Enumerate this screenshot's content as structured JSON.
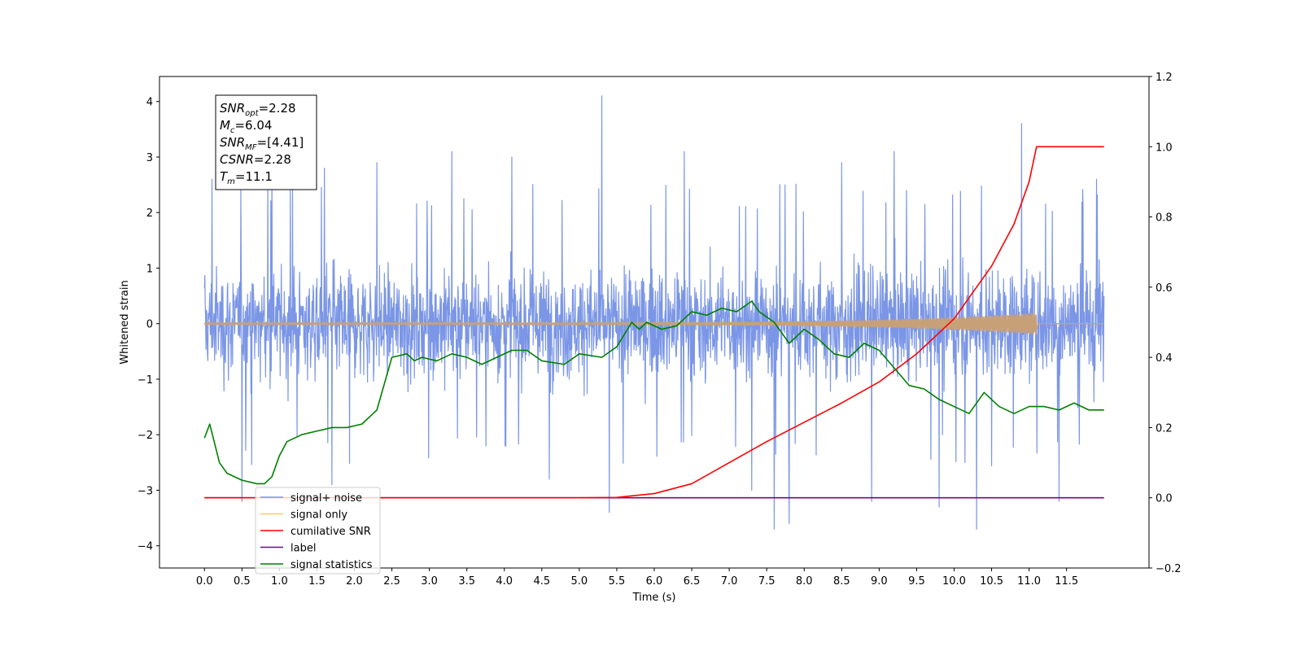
{
  "chart_data": {
    "type": "line",
    "xlabel": "Time (s)",
    "ylabel": "Whitened strain",
    "xlim": [
      -0.6,
      12.6
    ],
    "ylim": [
      -4.4,
      4.45
    ],
    "y2lim": [
      -0.2,
      1.2
    ],
    "x_ticks": [
      0.0,
      0.5,
      1.0,
      1.5,
      2.0,
      2.5,
      3.0,
      3.5,
      4.0,
      4.5,
      5.0,
      5.5,
      6.0,
      6.5,
      7.0,
      7.5,
      8.0,
      8.5,
      9.0,
      9.5,
      10.0,
      10.5,
      11.0,
      11.5
    ],
    "x_tick_labels": [
      "0.0",
      "0.5",
      "1.0",
      "1.5",
      "2.0",
      "2.5",
      "3.0",
      "3.5",
      "4.0",
      "4.5",
      "5.0",
      "5.5",
      "6.0",
      "6.5",
      "7.0",
      "7.5",
      "8.0",
      "8.5",
      "9.0",
      "9.5",
      "10.0",
      "10.5",
      "11.0",
      "11.5"
    ],
    "y_ticks": [
      -4,
      -3,
      -2,
      -1,
      0,
      1,
      2,
      3,
      4
    ],
    "y_tick_labels": [
      "−4",
      "−3",
      "−2",
      "−1",
      "0",
      "1",
      "2",
      "3",
      "4"
    ],
    "y2_ticks": [
      -0.2,
      0.0,
      0.2,
      0.4,
      0.6,
      0.8,
      1.0,
      1.2
    ],
    "y2_tick_labels": [
      "−0.2",
      "0.0",
      "0.2",
      "0.4",
      "0.6",
      "0.8",
      "1.0",
      "1.2"
    ],
    "grid": false,
    "legend_position": "lower-left",
    "legend": [
      {
        "label": "signal+ noise",
        "color": "#7b96e6"
      },
      {
        "label": "signal only",
        "color": "#ffc966"
      },
      {
        "label": "cumilative SNR",
        "color": "#ff0000"
      },
      {
        "label": "label",
        "color": "#800080"
      },
      {
        "label": "signal statistics",
        "color": "#008000"
      }
    ],
    "annotation": {
      "lines": [
        {
          "var": "SNR",
          "sub": "opt",
          "value": "=2.28"
        },
        {
          "var": "M",
          "sub": "c",
          "value": "=6.04"
        },
        {
          "var": "SNR",
          "sub": "MF",
          "value": "=[4.41]"
        },
        {
          "var": "CSNR",
          "sub": "",
          "value": "=2.28"
        },
        {
          "var": "T",
          "sub": "m",
          "value": "=11.1"
        }
      ]
    },
    "series": [
      {
        "name": "signal+ noise",
        "axis": "left",
        "color": "#7b96e6",
        "x_range": [
          0.0,
          12.0
        ],
        "envelope_typical": [
          -1.6,
          1.6
        ],
        "peaks": [
          {
            "x": 0.1,
            "y": 2.6
          },
          {
            "x": 0.5,
            "y": -3.2
          },
          {
            "x": 0.9,
            "y": 2.8
          },
          {
            "x": 1.6,
            "y": 2.8
          },
          {
            "x": 1.7,
            "y": -2.9
          },
          {
            "x": 2.3,
            "y": 2.9
          },
          {
            "x": 3.3,
            "y": 3.1
          },
          {
            "x": 4.1,
            "y": 3.0
          },
          {
            "x": 4.6,
            "y": -2.8
          },
          {
            "x": 5.3,
            "y": 4.1
          },
          {
            "x": 5.4,
            "y": -3.4
          },
          {
            "x": 6.4,
            "y": 3.1
          },
          {
            "x": 7.3,
            "y": -3.0
          },
          {
            "x": 7.6,
            "y": -3.7
          },
          {
            "x": 7.8,
            "y": -3.6
          },
          {
            "x": 8.5,
            "y": 2.9
          },
          {
            "x": 8.9,
            "y": -3.2
          },
          {
            "x": 9.2,
            "y": 3.1
          },
          {
            "x": 9.8,
            "y": -3.3
          },
          {
            "x": 10.3,
            "y": -3.7
          },
          {
            "x": 10.9,
            "y": 3.6
          },
          {
            "x": 11.4,
            "y": -3.2
          },
          {
            "x": 11.9,
            "y": 2.6
          }
        ]
      },
      {
        "name": "signal only",
        "axis": "left",
        "color": "#c8a078",
        "x_range": [
          0.0,
          11.1
        ],
        "amplitude_start": 0.02,
        "amplitude_end": 0.2
      },
      {
        "name": "cumilative SNR",
        "axis": "right",
        "color": "#ff0000",
        "x": [
          0.0,
          5.0,
          5.5,
          6.0,
          6.5,
          7.0,
          7.5,
          8.0,
          8.5,
          9.0,
          9.5,
          10.0,
          10.5,
          10.8,
          11.0,
          11.1,
          12.0
        ],
        "y": [
          0.0,
          0.0,
          0.001,
          0.012,
          0.04,
          0.1,
          0.16,
          0.215,
          0.27,
          0.33,
          0.41,
          0.51,
          0.66,
          0.78,
          0.9,
          1.0,
          1.0
        ]
      },
      {
        "name": "label",
        "axis": "right",
        "color": "#800080",
        "x": [
          0.0,
          12.0
        ],
        "y": [
          0.0,
          0.0
        ]
      },
      {
        "name": "signal statistics",
        "axis": "right",
        "color": "#008000",
        "x": [
          0.0,
          0.07,
          0.2,
          0.3,
          0.5,
          0.7,
          0.8,
          0.9,
          1.0,
          1.1,
          1.3,
          1.5,
          1.7,
          1.9,
          2.1,
          2.3,
          2.5,
          2.7,
          2.8,
          2.9,
          3.1,
          3.3,
          3.5,
          3.7,
          3.9,
          4.1,
          4.3,
          4.5,
          4.8,
          5.0,
          5.3,
          5.5,
          5.7,
          5.8,
          5.9,
          6.1,
          6.3,
          6.5,
          6.7,
          6.9,
          7.1,
          7.3,
          7.4,
          7.6,
          7.8,
          8.0,
          8.2,
          8.4,
          8.6,
          8.8,
          8.9,
          9.0,
          9.2,
          9.4,
          9.6,
          9.8,
          10.0,
          10.2,
          10.4,
          10.6,
          10.8,
          11.0,
          11.2,
          11.4,
          11.6,
          11.8,
          12.0
        ],
        "y": [
          0.17,
          0.21,
          0.1,
          0.07,
          0.05,
          0.04,
          0.04,
          0.06,
          0.12,
          0.16,
          0.18,
          0.19,
          0.2,
          0.2,
          0.21,
          0.25,
          0.4,
          0.41,
          0.39,
          0.4,
          0.39,
          0.41,
          0.4,
          0.38,
          0.4,
          0.42,
          0.42,
          0.39,
          0.38,
          0.41,
          0.4,
          0.43,
          0.5,
          0.48,
          0.5,
          0.48,
          0.49,
          0.53,
          0.52,
          0.54,
          0.53,
          0.56,
          0.53,
          0.5,
          0.44,
          0.48,
          0.45,
          0.41,
          0.4,
          0.44,
          0.43,
          0.42,
          0.37,
          0.32,
          0.31,
          0.28,
          0.26,
          0.24,
          0.3,
          0.26,
          0.24,
          0.26,
          0.26,
          0.25,
          0.27,
          0.25,
          0.25
        ]
      }
    ]
  }
}
